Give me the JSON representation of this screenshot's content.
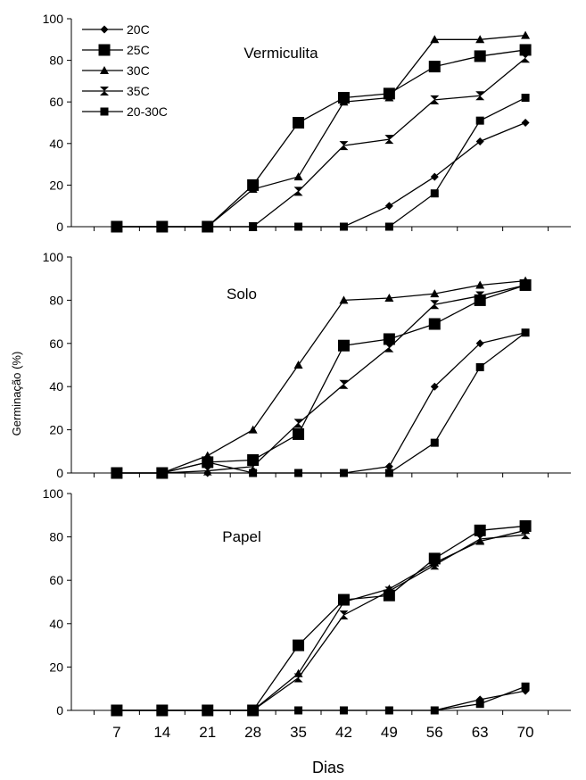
{
  "chart_data": {
    "type": "line",
    "ylabel": "Germinação (%)",
    "xlabel": "Dias",
    "x": [
      7,
      14,
      21,
      28,
      35,
      42,
      49,
      56,
      63,
      70
    ],
    "xlim": [
      0,
      77
    ],
    "ylim": [
      0,
      100
    ],
    "yticks": [
      0,
      20,
      40,
      60,
      80,
      100
    ],
    "legend": {
      "placement": "top-left of first panel",
      "entries": [
        {
          "name": "20C",
          "marker": "diamond"
        },
        {
          "name": "25C",
          "marker": "square"
        },
        {
          "name": "30C",
          "marker": "triangle"
        },
        {
          "name": "35C",
          "marker": "bowtie"
        },
        {
          "name": "20-30C",
          "marker": "bowtie-square"
        }
      ]
    },
    "panels": [
      {
        "title": "Vermiculita",
        "series": [
          {
            "name": "20C",
            "marker": "diamond",
            "values": [
              0,
              0,
              0,
              0,
              0,
              0,
              10,
              24,
              41,
              50
            ]
          },
          {
            "name": "25C",
            "marker": "square",
            "values": [
              0,
              0,
              0,
              20,
              50,
              62,
              64,
              77,
              82,
              85
            ]
          },
          {
            "name": "30C",
            "marker": "triangle",
            "values": [
              0,
              0,
              0,
              18,
              24,
              60,
              62,
              90,
              90,
              92
            ]
          },
          {
            "name": "35C",
            "marker": "bowtie",
            "values": [
              0,
              0,
              0,
              0,
              17,
              39,
              42,
              61,
              63,
              81
            ]
          },
          {
            "name": "20-30C",
            "marker": "bowtie-square",
            "values": [
              0,
              0,
              0,
              0,
              0,
              0,
              0,
              16,
              51,
              62
            ]
          }
        ]
      },
      {
        "title": "Solo",
        "series": [
          {
            "name": "20C",
            "marker": "diamond",
            "values": [
              0,
              0,
              0,
              0,
              0,
              0,
              3,
              40,
              60,
              65
            ]
          },
          {
            "name": "25C",
            "marker": "square",
            "values": [
              0,
              0,
              5,
              6,
              18,
              59,
              62,
              69,
              80,
              87
            ]
          },
          {
            "name": "30C",
            "marker": "triangle",
            "values": [
              0,
              0,
              8,
              20,
              50,
              80,
              81,
              83,
              87,
              89
            ]
          },
          {
            "name": "35C",
            "marker": "bowtie",
            "values": [
              0,
              0,
              1,
              3,
              23,
              41,
              58,
              78,
              82,
              87
            ]
          },
          {
            "name": "20-30C",
            "marker": "bowtie-square",
            "values": [
              0,
              0,
              5,
              0,
              0,
              0,
              0,
              14,
              49,
              65
            ]
          }
        ]
      },
      {
        "title": "Papel",
        "series": [
          {
            "name": "20C",
            "marker": "diamond",
            "values": [
              0,
              0,
              0,
              0,
              0,
              0,
              0,
              0,
              5,
              9
            ]
          },
          {
            "name": "25C",
            "marker": "square",
            "values": [
              0,
              0,
              0,
              0,
              30,
              51,
              53,
              70,
              83,
              85
            ]
          },
          {
            "name": "30C",
            "marker": "triangle",
            "values": [
              0,
              0,
              0,
              0,
              17,
              50,
              56,
              68,
              78,
              83
            ]
          },
          {
            "name": "35C",
            "marker": "bowtie",
            "values": [
              0,
              0,
              0,
              0,
              15,
              44,
              55,
              67,
              79,
              81
            ]
          },
          {
            "name": "20-30C",
            "marker": "bowtie-square",
            "values": [
              0,
              0,
              0,
              0,
              0,
              0,
              0,
              0,
              3,
              11
            ]
          }
        ]
      }
    ]
  }
}
